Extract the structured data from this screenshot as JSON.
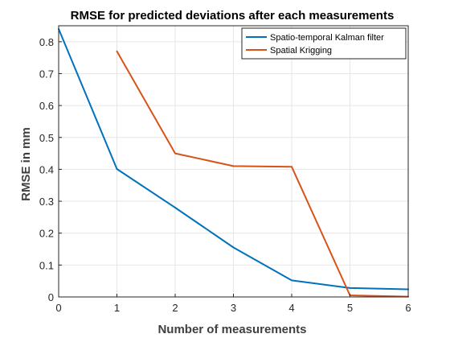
{
  "chart_data": {
    "type": "line",
    "title": "RMSE for predicted deviations after each measurements",
    "xlabel": "Number of measurements",
    "ylabel": "RMSE in mm",
    "xlim": [
      0,
      6
    ],
    "ylim": [
      0,
      0.85
    ],
    "xticks": [
      0,
      1,
      2,
      3,
      4,
      5,
      6
    ],
    "yticks": [
      0,
      0.1,
      0.2,
      0.3,
      0.4,
      0.5,
      0.6,
      0.7,
      0.8
    ],
    "grid": true,
    "legend_position": "top-right",
    "series": [
      {
        "name": "Spatio-temporal Kalman filter",
        "color": "#0072BD",
        "x": [
          0,
          1,
          2,
          3,
          4,
          5,
          6
        ],
        "y": [
          0.84,
          0.401,
          0.28,
          0.155,
          0.052,
          0.028,
          0.024
        ]
      },
      {
        "name": "Spatial Krigging",
        "color": "#D95319",
        "x": [
          1,
          2,
          3,
          4,
          5,
          6
        ],
        "y": [
          0.77,
          0.45,
          0.41,
          0.408,
          0.005,
          0.001
        ]
      }
    ]
  }
}
